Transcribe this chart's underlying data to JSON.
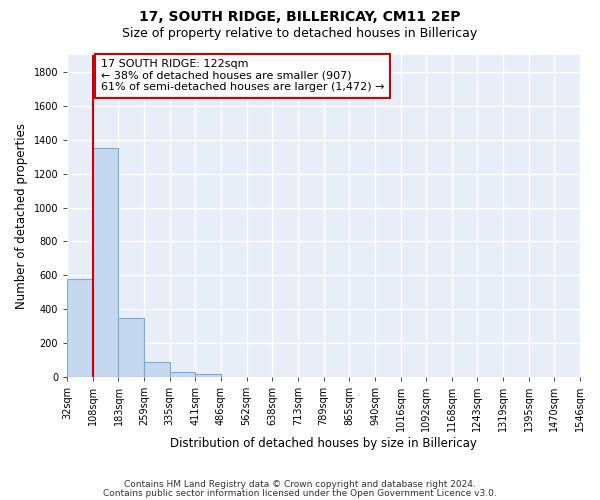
{
  "title": "17, SOUTH RIDGE, BILLERICAY, CM11 2EP",
  "subtitle": "Size of property relative to detached houses in Billericay",
  "xlabel": "Distribution of detached houses by size in Billericay",
  "ylabel": "Number of detached properties",
  "footer_line1": "Contains HM Land Registry data © Crown copyright and database right 2024.",
  "footer_line2": "Contains public sector information licensed under the Open Government Licence v3.0.",
  "bin_labels": [
    "32sqm",
    "108sqm",
    "183sqm",
    "259sqm",
    "335sqm",
    "411sqm",
    "486sqm",
    "562sqm",
    "638sqm",
    "713sqm",
    "789sqm",
    "865sqm",
    "940sqm",
    "1016sqm",
    "1092sqm",
    "1168sqm",
    "1243sqm",
    "1319sqm",
    "1395sqm",
    "1470sqm",
    "1546sqm"
  ],
  "bar_values": [
    580,
    1350,
    350,
    90,
    30,
    20,
    0,
    0,
    0,
    0,
    0,
    0,
    0,
    0,
    0,
    0,
    0,
    0,
    0,
    0
  ],
  "bar_color": "#c5d8f0",
  "bar_edge_color": "#7aadd4",
  "vline_x": 1,
  "vline_color": "#cc0000",
  "annotation_text": "17 SOUTH RIDGE: 122sqm\n← 38% of detached houses are smaller (907)\n61% of semi-detached houses are larger (1,472) →",
  "annotation_box_facecolor": "#ffffff",
  "annotation_box_edgecolor": "#cc0000",
  "ylim": [
    0,
    1900
  ],
  "yticks": [
    0,
    200,
    400,
    600,
    800,
    1000,
    1200,
    1400,
    1600,
    1800
  ],
  "background_color": "#e8eef8",
  "grid_color": "#ffffff",
  "title_fontsize": 10,
  "subtitle_fontsize": 9,
  "axis_label_fontsize": 8.5,
  "tick_fontsize": 7,
  "annotation_fontsize": 8,
  "footer_fontsize": 6.5,
  "fig_width": 6.0,
  "fig_height": 5.0,
  "fig_dpi": 100
}
